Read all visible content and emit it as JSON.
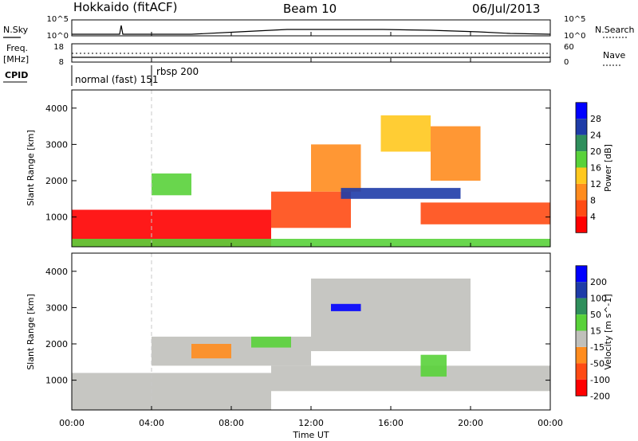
{
  "header": {
    "station": "Hokkaido (fitACF)",
    "beam": "Beam 10",
    "date": "06/Jul/2013"
  },
  "strips": {
    "nsky": {
      "label": "N.Sky",
      "tick_top": "10^5",
      "tick_bottom": "10^0"
    },
    "nsearch": {
      "label": "N.Search",
      "tick_top": "10^5",
      "tick_bottom": "10^0"
    },
    "freq": {
      "label_1": "Freq.",
      "label_2": "[MHz]",
      "tick_top": "18",
      "tick_bottom": "8"
    },
    "nave": {
      "label": "Nave",
      "tick_top": "60",
      "tick_bottom": "0"
    },
    "cpid": {
      "label": "CPID",
      "segments": [
        {
          "name": "normal (fast) 151",
          "start_hour": 0,
          "end_hour": 4
        },
        {
          "name": "rbsp 200",
          "start_hour": 4,
          "end_hour": 24
        }
      ]
    }
  },
  "chart_data": [
    {
      "type": "heatmap",
      "title": "Power",
      "ylabel": "Slant Range [km]",
      "xlabel": "Time UT",
      "xlim": [
        0,
        24
      ],
      "ylim": [
        180,
        4500
      ],
      "x_ticks": [
        "00:00",
        "04:00",
        "08:00",
        "12:00",
        "16:00",
        "20:00",
        "00:00"
      ],
      "y_ticks": [
        1000,
        2000,
        3000,
        4000
      ],
      "colorbar": {
        "label": "Power [dB]",
        "ticks": [
          "4",
          "8",
          "12",
          "16",
          "20",
          "24",
          "28"
        ],
        "colors": [
          "#0000ff",
          "#1e3ca8",
          "#2f8f5c",
          "#59d23a",
          "#ffc81e",
          "#ff8c1e",
          "#ff4b14",
          "#ff0000"
        ]
      },
      "regions": [
        {
          "t0": 0.0,
          "t1": 10.0,
          "r0": 180,
          "r1": 1200,
          "level": 7
        },
        {
          "t0": 10.0,
          "t1": 14.0,
          "r0": 700,
          "r1": 1700,
          "level": 6
        },
        {
          "t0": 12.0,
          "t1": 14.5,
          "r0": 1700,
          "r1": 3000,
          "level": 5
        },
        {
          "t0": 17.5,
          "t1": 24.0,
          "r0": 800,
          "r1": 1400,
          "level": 6
        },
        {
          "t0": 13.5,
          "t1": 19.5,
          "r0": 1500,
          "r1": 1800,
          "level": 1
        },
        {
          "t0": 15.5,
          "t1": 18.0,
          "r0": 2800,
          "r1": 3800,
          "level": 4
        },
        {
          "t0": 18.0,
          "t1": 20.5,
          "r0": 2000,
          "r1": 3500,
          "level": 5
        },
        {
          "t0": 4.0,
          "t1": 6.0,
          "r0": 1600,
          "r1": 2200,
          "level": 3
        },
        {
          "t0": 0.0,
          "t1": 24.0,
          "r0": 180,
          "r1": 400,
          "level": 3
        }
      ]
    },
    {
      "type": "heatmap",
      "title": "Velocity",
      "ylabel": "Slant Range [km]",
      "xlabel": "Time UT",
      "xlim": [
        0,
        24
      ],
      "ylim": [
        180,
        4500
      ],
      "x_ticks": [
        "00:00",
        "04:00",
        "08:00",
        "12:00",
        "16:00",
        "20:00",
        "00:00"
      ],
      "y_ticks": [
        1000,
        2000,
        3000,
        4000
      ],
      "colorbar": {
        "label": "Velocity [m s^-1]",
        "ticks": [
          "200",
          "100",
          "50",
          "15",
          "-15",
          "-50",
          "-100",
          "-200"
        ],
        "colors": [
          "#0000ff",
          "#1e3ca8",
          "#2f8f5c",
          "#59d23a",
          "#c0c0bb",
          "#ff8c1e",
          "#ff4b14",
          "#ff0000"
        ]
      },
      "regions": [
        {
          "t0": 0.0,
          "t1": 10.0,
          "r0": 180,
          "r1": 1200,
          "level": 4
        },
        {
          "t0": 10.0,
          "t1": 24.0,
          "r0": 700,
          "r1": 1400,
          "level": 4
        },
        {
          "t0": 4.0,
          "t1": 12.0,
          "r0": 1400,
          "r1": 2200,
          "level": 4
        },
        {
          "t0": 12.0,
          "t1": 20.0,
          "r0": 1800,
          "r1": 3800,
          "level": 4
        },
        {
          "t0": 13.0,
          "t1": 14.5,
          "r0": 2900,
          "r1": 3100,
          "level": 0
        },
        {
          "t0": 9.0,
          "t1": 11.0,
          "r0": 1900,
          "r1": 2200,
          "level": 3
        },
        {
          "t0": 17.5,
          "t1": 18.8,
          "r0": 1100,
          "r1": 1700,
          "level": 3
        },
        {
          "t0": 6.0,
          "t1": 8.0,
          "r0": 1600,
          "r1": 2000,
          "level": 5
        }
      ]
    }
  ]
}
